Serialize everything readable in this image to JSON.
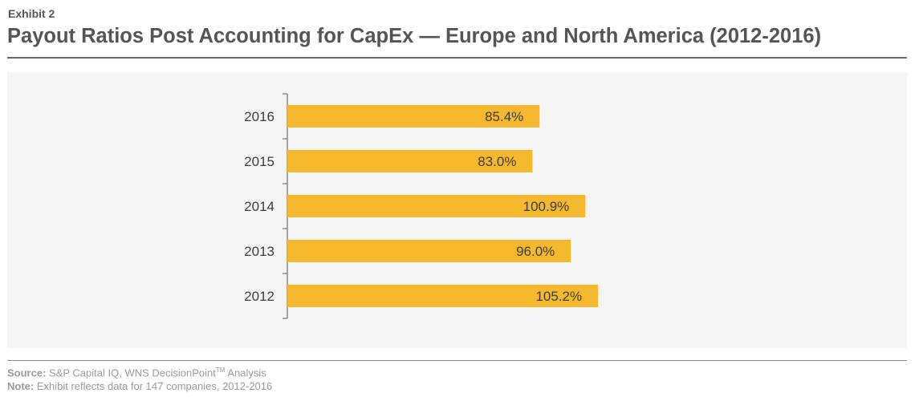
{
  "header": {
    "exhibit": "Exhibit 2",
    "title": "Payout Ratios Post Accounting for CapEx — Europe and North America (2012-2016)"
  },
  "footer": {
    "source_label": "Source:",
    "source_text": "S&P Capital IQ, WNS DecisionPoint",
    "source_tm": "TM",
    "source_tail": " Analysis",
    "note_label": "Note:",
    "note_text": "Exhibit reflects data for 147 companies, 2012-2016"
  },
  "colors": {
    "bar": "#f6b92e",
    "panel": "#f5f5f5",
    "axis": "#8a8a8a"
  },
  "chart_data": {
    "type": "bar",
    "orientation": "horizontal",
    "categories": [
      "2016",
      "2015",
      "2014",
      "2013",
      "2012"
    ],
    "values": [
      85.4,
      83.0,
      100.9,
      96.0,
      105.2
    ],
    "value_labels": [
      "85.4%",
      "83.0%",
      "100.9%",
      "96.0%",
      "105.2%"
    ],
    "title": "",
    "xlabel": "",
    "ylabel": "",
    "xlim": [
      0,
      140
    ],
    "grid": false,
    "legend": "none"
  }
}
